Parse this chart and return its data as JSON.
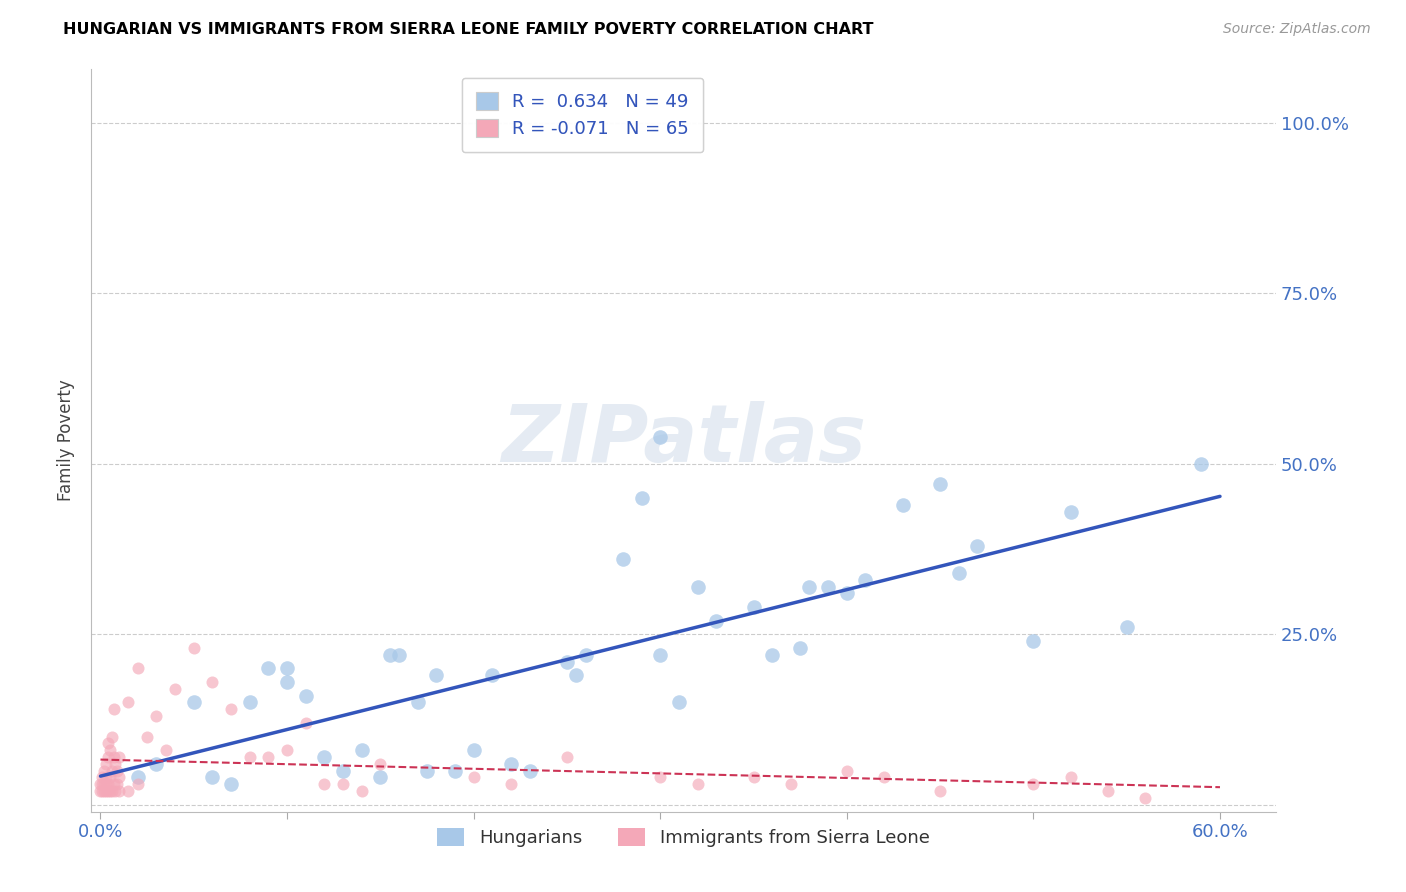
{
  "title": "HUNGARIAN VS IMMIGRANTS FROM SIERRA LEONE FAMILY POVERTY CORRELATION CHART",
  "source": "Source: ZipAtlas.com",
  "ylabel": "Family Poverty",
  "xlim": [
    -0.005,
    0.63
  ],
  "ylim": [
    -0.01,
    1.08
  ],
  "ytick_vals": [
    0.0,
    0.25,
    0.5,
    0.75,
    1.0
  ],
  "ytick_labels_right": [
    "",
    "25.0%",
    "50.0%",
    "75.0%",
    "100.0%"
  ],
  "xtick_vals": [
    0.0,
    0.1,
    0.2,
    0.3,
    0.4,
    0.5,
    0.6
  ],
  "blue_R": 0.634,
  "blue_N": 49,
  "pink_R": -0.071,
  "pink_N": 65,
  "blue_color": "#a8c8e8",
  "pink_color": "#f4a8b8",
  "blue_line_color": "#3355bb",
  "pink_line_color": "#cc3355",
  "watermark": "ZIPatlas",
  "legend_items": [
    "Hungarians",
    "Immigrants from Sierra Leone"
  ],
  "blue_x": [
    0.02,
    0.03,
    0.05,
    0.06,
    0.07,
    0.08,
    0.09,
    0.1,
    0.1,
    0.11,
    0.12,
    0.13,
    0.14,
    0.15,
    0.155,
    0.16,
    0.17,
    0.175,
    0.18,
    0.19,
    0.2,
    0.21,
    0.22,
    0.23,
    0.25,
    0.255,
    0.26,
    0.28,
    0.29,
    0.3,
    0.3,
    0.31,
    0.32,
    0.33,
    0.35,
    0.36,
    0.375,
    0.38,
    0.39,
    0.4,
    0.41,
    0.43,
    0.45,
    0.46,
    0.47,
    0.5,
    0.52,
    0.55,
    0.59
  ],
  "blue_y": [
    0.04,
    0.06,
    0.15,
    0.04,
    0.03,
    0.15,
    0.2,
    0.18,
    0.2,
    0.16,
    0.07,
    0.05,
    0.08,
    0.04,
    0.22,
    0.22,
    0.15,
    0.05,
    0.19,
    0.05,
    0.08,
    0.19,
    0.06,
    0.05,
    0.21,
    0.19,
    0.22,
    0.36,
    0.45,
    0.54,
    0.22,
    0.15,
    0.32,
    0.27,
    0.29,
    0.22,
    0.23,
    0.32,
    0.32,
    0.31,
    0.33,
    0.44,
    0.47,
    0.34,
    0.38,
    0.24,
    0.43,
    0.26,
    0.5
  ],
  "pink_x": [
    0.0,
    0.0,
    0.001,
    0.001,
    0.001,
    0.002,
    0.002,
    0.002,
    0.003,
    0.003,
    0.003,
    0.003,
    0.004,
    0.004,
    0.004,
    0.004,
    0.005,
    0.005,
    0.005,
    0.006,
    0.006,
    0.006,
    0.007,
    0.007,
    0.007,
    0.008,
    0.008,
    0.009,
    0.009,
    0.01,
    0.01,
    0.01,
    0.015,
    0.015,
    0.02,
    0.02,
    0.025,
    0.03,
    0.035,
    0.04,
    0.05,
    0.06,
    0.07,
    0.08,
    0.09,
    0.1,
    0.11,
    0.12,
    0.13,
    0.14,
    0.15,
    0.2,
    0.22,
    0.25,
    0.3,
    0.32,
    0.35,
    0.37,
    0.4,
    0.42,
    0.45,
    0.5,
    0.52,
    0.54,
    0.56
  ],
  "pink_y": [
    0.02,
    0.03,
    0.02,
    0.03,
    0.04,
    0.02,
    0.03,
    0.05,
    0.02,
    0.03,
    0.04,
    0.06,
    0.02,
    0.03,
    0.07,
    0.09,
    0.02,
    0.04,
    0.08,
    0.02,
    0.05,
    0.1,
    0.03,
    0.07,
    0.14,
    0.02,
    0.06,
    0.03,
    0.05,
    0.02,
    0.04,
    0.07,
    0.02,
    0.15,
    0.2,
    0.03,
    0.1,
    0.13,
    0.08,
    0.17,
    0.23,
    0.18,
    0.14,
    0.07,
    0.07,
    0.08,
    0.12,
    0.03,
    0.03,
    0.02,
    0.06,
    0.04,
    0.03,
    0.07,
    0.04,
    0.03,
    0.04,
    0.03,
    0.05,
    0.04,
    0.02,
    0.03,
    0.04,
    0.02,
    0.01
  ]
}
